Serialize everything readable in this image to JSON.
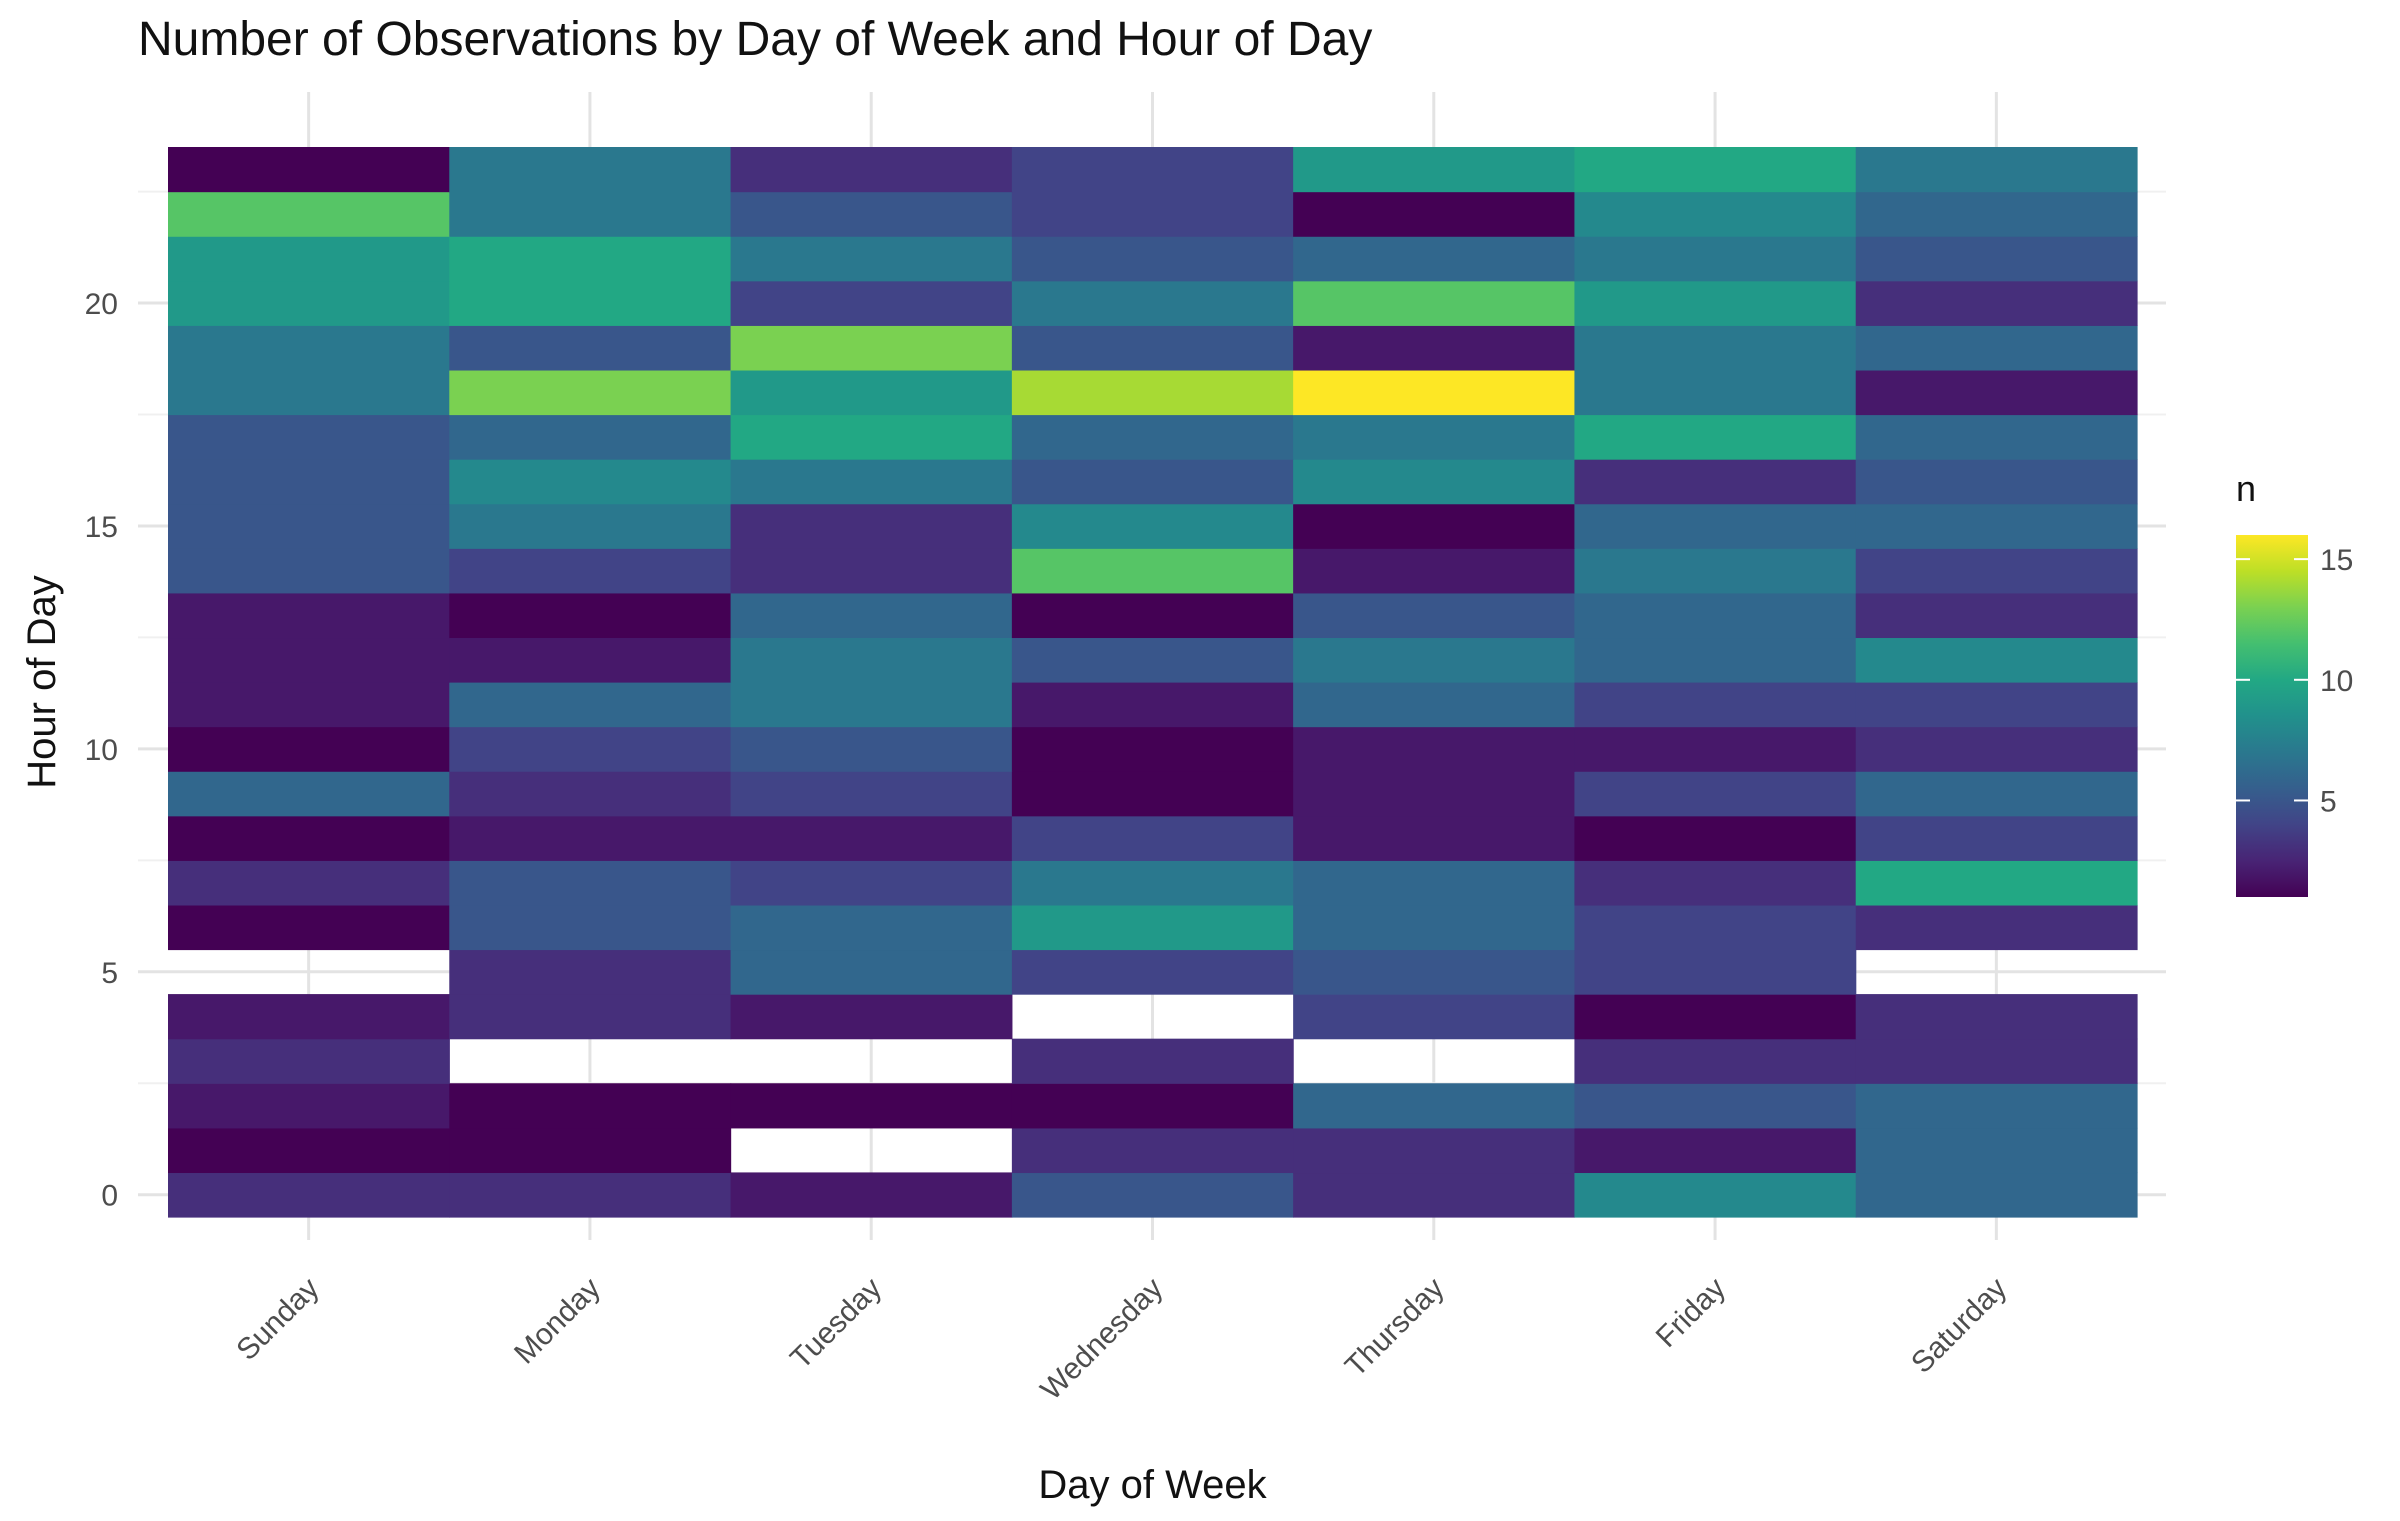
{
  "chart_data": {
    "type": "heatmap",
    "title": "Number of Observations by Day of Week and Hour of Day",
    "xlabel": "Day of Week",
    "ylabel": "Hour of Day",
    "x_categories": [
      "Sunday",
      "Monday",
      "Tuesday",
      "Wednesday",
      "Thursday",
      "Friday",
      "Saturday"
    ],
    "y_range": [
      -0.5,
      23.5
    ],
    "y_ticks": [
      0,
      5,
      10,
      15,
      20
    ],
    "grid": true,
    "legend": {
      "title": "n",
      "position": "right",
      "range": [
        1,
        16
      ],
      "ticks": [
        5,
        10,
        15
      ],
      "colormap": "viridis"
    },
    "values": [
      [
        3,
        3,
        2,
        5,
        3,
        8,
        6
      ],
      [
        1,
        1,
        null,
        3,
        3,
        2,
        6
      ],
      [
        2,
        1,
        1,
        1,
        6,
        5,
        6
      ],
      [
        3,
        null,
        null,
        3,
        null,
        3,
        3
      ],
      [
        2,
        3,
        2,
        null,
        4,
        1,
        3
      ],
      [
        null,
        3,
        6,
        4,
        5,
        4,
        null
      ],
      [
        1,
        5,
        6,
        9,
        6,
        4,
        3
      ],
      [
        3,
        5,
        4,
        7,
        6,
        3,
        10
      ],
      [
        1,
        2,
        2,
        4,
        2,
        1,
        4
      ],
      [
        6,
        3,
        4,
        1,
        2,
        4,
        6
      ],
      [
        1,
        4,
        5,
        1,
        2,
        2,
        3
      ],
      [
        2,
        6,
        7,
        2,
        6,
        4,
        4
      ],
      [
        2,
        2,
        7,
        5,
        7,
        6,
        8
      ],
      [
        2,
        1,
        6,
        1,
        5,
        6,
        3
      ],
      [
        5,
        4,
        3,
        12,
        2,
        7,
        4
      ],
      [
        5,
        7,
        3,
        8,
        1,
        6,
        6
      ],
      [
        5,
        8,
        7,
        5,
        8,
        3,
        5
      ],
      [
        5,
        6,
        10,
        6,
        7,
        10,
        6
      ],
      [
        7,
        13,
        9,
        14,
        16,
        7,
        2
      ],
      [
        7,
        5,
        13,
        5,
        2,
        7,
        6
      ],
      [
        9,
        10,
        4,
        7,
        12,
        9,
        3
      ],
      [
        9,
        10,
        7,
        5,
        6,
        7,
        5
      ],
      [
        12,
        7,
        5,
        4,
        1,
        8,
        6
      ],
      [
        1,
        7,
        3,
        4,
        9,
        10,
        7
      ]
    ]
  }
}
